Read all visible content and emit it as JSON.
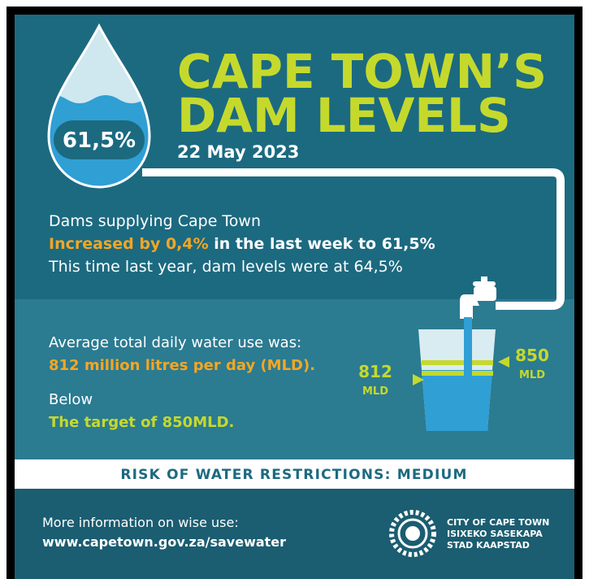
{
  "header": {
    "title_line1": "CAPE TOWN’S",
    "title_line2": "DAM LEVELS",
    "date": "22 May 2023",
    "level": "61,5%"
  },
  "dams": {
    "line1": "Dams supplying Cape Town",
    "highlight": "Increased by 0,4%",
    "line2_rest": " in the last week to 61,5%",
    "line3": "This time last year, dam levels were at 64,5%"
  },
  "usage": {
    "line1": "Average total daily water use was:",
    "line2": "812 million litres per day (MLD).",
    "line3": "Below",
    "line4": "The target of 850MLD.",
    "actual": "812",
    "actual_unit": "MLD",
    "target": "850",
    "target_unit": "MLD"
  },
  "risk": "RISK OF WATER RESTRICTIONS: MEDIUM",
  "footer": {
    "info": "More information on wise use:",
    "url": "www.capetown.gov.za/savewater",
    "logo_line1": "CITY OF CAPE TOWN",
    "logo_line2": "ISIXEKO SASEKAPA",
    "logo_line3": "STAD KAAPSTAD"
  }
}
